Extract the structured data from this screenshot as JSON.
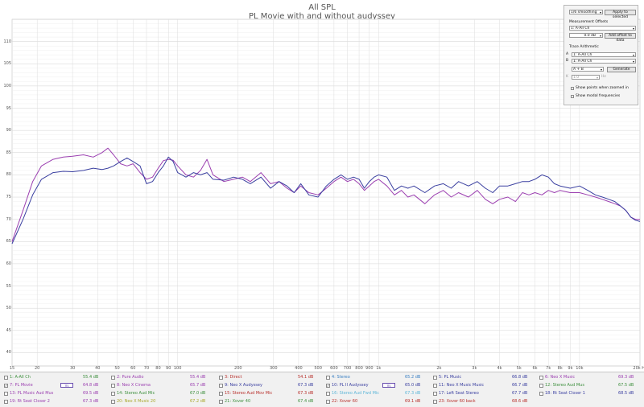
{
  "window": {
    "title": "All SPL",
    "subtitle": "PL Movie with and without audyssey"
  },
  "chart_data": {
    "type": "line",
    "title": "All SPL",
    "subtitle": "PL Movie with and without audyssey",
    "x_scale": "log",
    "xlim": [
      15,
      20000
    ],
    "ylim": [
      37,
      115
    ],
    "x_ticks": [
      {
        "v": 15,
        "t": "15"
      },
      {
        "v": 20,
        "t": "20"
      },
      {
        "v": 30,
        "t": "30"
      },
      {
        "v": 40,
        "t": "40"
      },
      {
        "v": 50,
        "t": "50"
      },
      {
        "v": 60,
        "t": "60"
      },
      {
        "v": 70,
        "t": "70"
      },
      {
        "v": 80,
        "t": "80"
      },
      {
        "v": 90,
        "t": "90"
      },
      {
        "v": 100,
        "t": "100"
      },
      {
        "v": 200,
        "t": "200"
      },
      {
        "v": 300,
        "t": "300"
      },
      {
        "v": 400,
        "t": "400"
      },
      {
        "v": 500,
        "t": "500"
      },
      {
        "v": 600,
        "t": "600"
      },
      {
        "v": 700,
        "t": "700"
      },
      {
        "v": 800,
        "t": "800"
      },
      {
        "v": 900,
        "t": "900"
      },
      {
        "v": 1000,
        "t": "1k"
      },
      {
        "v": 2000,
        "t": "2k"
      },
      {
        "v": 3000,
        "t": "3k"
      },
      {
        "v": 4000,
        "t": "4k"
      },
      {
        "v": 5000,
        "t": "5k"
      },
      {
        "v": 6000,
        "t": "6k"
      },
      {
        "v": 7000,
        "t": "7k"
      },
      {
        "v": 8000,
        "t": "8k"
      },
      {
        "v": 9000,
        "t": "9k"
      },
      {
        "v": 10000,
        "t": "10k"
      },
      {
        "v": 20000,
        "t": "20k Hz"
      }
    ],
    "y_ticks": [
      110,
      105,
      100,
      95,
      90,
      85,
      80,
      75,
      70,
      65,
      60,
      55,
      50,
      45,
      40
    ],
    "grid": true,
    "legend": "bottom",
    "series": [
      {
        "name": "7: PL Movie",
        "color": "#9b3fb0",
        "x": [
          15,
          17,
          19,
          21,
          24,
          27,
          30,
          34,
          38,
          42,
          45,
          48,
          52,
          56,
          60,
          65,
          70,
          75,
          80,
          85,
          90,
          95,
          100,
          110,
          120,
          130,
          140,
          150,
          170,
          190,
          210,
          230,
          260,
          290,
          320,
          350,
          380,
          410,
          450,
          500,
          550,
          600,
          650,
          700,
          750,
          800,
          850,
          900,
          950,
          1000,
          1100,
          1200,
          1300,
          1400,
          1500,
          1700,
          1900,
          2100,
          2300,
          2500,
          2800,
          3100,
          3400,
          3700,
          4000,
          4400,
          4800,
          5200,
          5600,
          6000,
          6500,
          7000,
          7500,
          8000,
          9000,
          10000,
          11000,
          12000,
          13000,
          14000,
          15000,
          16000,
          17000,
          18000,
          19000,
          20000
        ],
        "values": [
          65.0,
          72.0,
          78.5,
          82.0,
          83.5,
          84.0,
          84.2,
          84.5,
          84.0,
          85.0,
          86.0,
          84.5,
          82.5,
          82.0,
          82.5,
          80.5,
          79.0,
          79.5,
          81.5,
          83.2,
          83.5,
          83.3,
          82.0,
          80.0,
          79.5,
          81.0,
          83.5,
          80.0,
          78.5,
          79.0,
          79.5,
          78.5,
          80.5,
          78.0,
          78.5,
          77.0,
          76.0,
          77.5,
          76.0,
          75.5,
          77.0,
          78.5,
          79.5,
          78.5,
          79.0,
          78.0,
          76.5,
          77.5,
          78.5,
          79.0,
          77.5,
          75.5,
          76.5,
          75.0,
          75.5,
          73.5,
          75.5,
          76.5,
          75.0,
          76.0,
          75.0,
          76.5,
          74.5,
          73.5,
          74.5,
          75.0,
          74.0,
          76.0,
          75.5,
          76.0,
          75.5,
          76.5,
          76.0,
          76.5,
          76.0,
          76.0,
          75.5,
          75.0,
          74.5,
          74.0,
          73.5,
          73.0,
          72.0,
          70.5,
          70.0,
          70.0
        ]
      },
      {
        "name": "10: PL II Audyssey",
        "color": "#3a3fa0",
        "x": [
          15,
          17,
          19,
          21,
          24,
          27,
          30,
          34,
          38,
          42,
          45,
          48,
          52,
          56,
          60,
          65,
          70,
          75,
          80,
          85,
          90,
          95,
          100,
          110,
          120,
          130,
          140,
          150,
          170,
          190,
          210,
          230,
          260,
          290,
          320,
          350,
          380,
          410,
          450,
          500,
          550,
          600,
          650,
          700,
          750,
          800,
          850,
          900,
          950,
          1000,
          1100,
          1200,
          1300,
          1400,
          1500,
          1700,
          1900,
          2100,
          2300,
          2500,
          2800,
          3100,
          3400,
          3700,
          4000,
          4400,
          4800,
          5200,
          5600,
          6000,
          6500,
          7000,
          7500,
          8000,
          9000,
          10000,
          11000,
          12000,
          13000,
          14000,
          15000,
          16000,
          17000,
          18000,
          19000,
          20000
        ],
        "values": [
          64.5,
          70.0,
          75.5,
          79.0,
          80.5,
          80.8,
          80.7,
          81.0,
          81.5,
          81.2,
          81.5,
          82.0,
          83.0,
          83.8,
          83.0,
          82.0,
          78.0,
          78.5,
          80.5,
          82.0,
          84.0,
          83.0,
          80.5,
          79.5,
          80.5,
          80.0,
          80.5,
          79.0,
          78.8,
          79.5,
          79.0,
          78.0,
          79.5,
          77.0,
          78.5,
          77.5,
          76.0,
          78.0,
          75.5,
          75.0,
          77.5,
          79.0,
          80.0,
          79.0,
          79.5,
          79.0,
          77.0,
          78.5,
          79.5,
          80.0,
          79.5,
          76.5,
          77.5,
          77.0,
          77.5,
          76.0,
          77.5,
          78.0,
          77.0,
          78.5,
          77.5,
          78.5,
          77.0,
          76.0,
          77.5,
          77.5,
          78.0,
          78.5,
          78.5,
          79.0,
          80.0,
          79.5,
          78.0,
          77.5,
          77.0,
          77.5,
          76.5,
          75.5,
          75.0,
          74.5,
          74.0,
          73.0,
          72.0,
          70.5,
          69.8,
          69.5
        ]
      }
    ]
  },
  "panel": {
    "smoothing": "1/6 smoothing",
    "apply_label": "Apply to selected",
    "offsets_label": "Measurement Offsets",
    "offsets_select": "1: A-All Ch",
    "offset_value": "0.0",
    "offset_unit": "dB",
    "add_offset_label": "Add offset to data",
    "arith_label": "Trace Arithmetic",
    "a_label": "A",
    "a_value": "1: A-All Ch",
    "b_label": "B",
    "b_value": "1: A-All Ch",
    "op_value": "A + B",
    "generate_label": "Generate",
    "k_label": "K",
    "k_value": "1.0",
    "k_unit": "Hz",
    "show_points_label": "Show points when zoomed in",
    "show_modal_label": "Show modal frequencies"
  },
  "legend": {
    "items": [
      {
        "id": "1",
        "name": "1: A-All Ch",
        "value": "55.4 dB",
        "color": "#3d8f3d",
        "checked": false
      },
      {
        "id": "2",
        "name": "2: Pure Audio",
        "value": "55.4 dB",
        "color": "#9b3fb0",
        "checked": false
      },
      {
        "id": "3",
        "name": "3: Direct",
        "value": "54.1 dB",
        "color": "#b8302c",
        "checked": false
      },
      {
        "id": "4",
        "name": "4: Stereo",
        "value": "65.2 dB",
        "color": "#3a7fc2",
        "checked": false
      },
      {
        "id": "5",
        "name": "5: PL Music",
        "value": "66.8 dB",
        "color": "#3a3fa0",
        "checked": false
      },
      {
        "id": "6",
        "name": "6: Neo X Music",
        "value": "69.3 dB",
        "color": "#9b3fb0",
        "checked": false
      },
      {
        "id": "7",
        "name": "7: PL Movie",
        "value": "64.8 dB",
        "color": "#9b3fb0",
        "checked": true,
        "mark": "Vs"
      },
      {
        "id": "8",
        "name": "8: Neo X Cinema",
        "value": "65.7 dB",
        "color": "#9b3fb0",
        "checked": false
      },
      {
        "id": "9",
        "name": "9: Neo X Audyssey",
        "value": "67.3 dB",
        "color": "#3a3fa0",
        "checked": false
      },
      {
        "id": "10",
        "name": "10: PL II Audyssey",
        "value": "65.0 dB",
        "color": "#3a3fa0",
        "checked": true,
        "mark": "Vs"
      },
      {
        "id": "11",
        "name": "11: Neo X Music Music",
        "value": "66.7 dB",
        "color": "#3a3fa0",
        "checked": false
      },
      {
        "id": "12",
        "name": "12: Stereo Aud Mus",
        "value": "67.5 dB",
        "color": "#3d8f3d",
        "checked": false
      },
      {
        "id": "13",
        "name": "13: PL Music Aud Mus",
        "value": "69.5 dB",
        "color": "#9b3fb0",
        "checked": false
      },
      {
        "id": "14",
        "name": "14: Stereo Aud Mic",
        "value": "67.0 dB",
        "color": "#3d8f3d",
        "checked": false
      },
      {
        "id": "15",
        "name": "15: Stereo Aud Mov Mic",
        "value": "67.3 dB",
        "color": "#b8302c",
        "checked": false
      },
      {
        "id": "16",
        "name": "16: Stereo Aud Fwd Mic",
        "value": "67.3 dB",
        "color": "#5fb7d8",
        "checked": false
      },
      {
        "id": "17",
        "name": "17: Left Seat Stereo",
        "value": "67.7 dB",
        "color": "#3a3fa0",
        "checked": false
      },
      {
        "id": "18",
        "name": "18: Rt Seat Closer 1",
        "value": "68.5 dB",
        "color": "#3a3fa0",
        "checked": false
      },
      {
        "id": "19",
        "name": "19: Rt Seat Closer 2",
        "value": "67.3 dB",
        "color": "#9b3fb0",
        "checked": false
      },
      {
        "id": "20",
        "name": "20: Neo X Music 20",
        "value": "67.2 dB",
        "color": "#a8a82a",
        "checked": false
      },
      {
        "id": "21",
        "name": "21: Xover 40",
        "value": "67.4 dB",
        "color": "#3d8f3d",
        "checked": false
      },
      {
        "id": "22",
        "name": "22: Xover 60",
        "value": "69.1 dB",
        "color": "#b8302c",
        "checked": false
      },
      {
        "id": "23",
        "name": "23: Xover 60 back",
        "value": "68.6 dB",
        "color": "#b8302c",
        "checked": false
      }
    ]
  }
}
